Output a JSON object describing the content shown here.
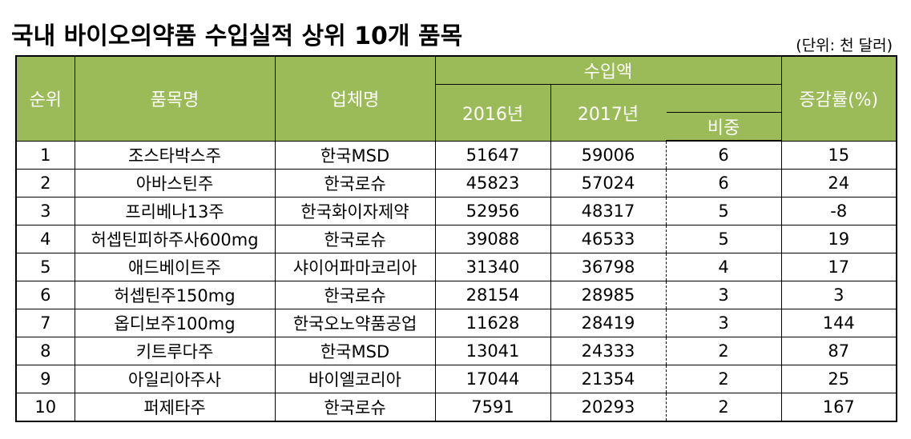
{
  "title": "국내 바이오의약품 수입실적 상위 10개 품목",
  "unit": "(단위: 천 달러)",
  "colors": {
    "header_bg": "#9bbb59",
    "header_text": "#ffffff"
  },
  "headers": {
    "rank": "순위",
    "item": "품목명",
    "company": "업체명",
    "import_amount": "수입액",
    "y2016": "2016년",
    "y2017": "2017년",
    "share": "비중",
    "change": "증감률(%)"
  },
  "rows": [
    {
      "rank": "1",
      "item": "조스타박스주",
      "company": "한국MSD",
      "y2016": "51647",
      "y2017": "59006",
      "share": "6",
      "change": "15"
    },
    {
      "rank": "2",
      "item": "아바스틴주",
      "company": "한국로슈",
      "y2016": "45823",
      "y2017": "57024",
      "share": "6",
      "change": "24"
    },
    {
      "rank": "3",
      "item": "프리베나13주",
      "company": "한국화이자제약",
      "y2016": "52956",
      "y2017": "48317",
      "share": "5",
      "change": "-8"
    },
    {
      "rank": "4",
      "item": "허셉틴피하주사600mg",
      "company": "한국로슈",
      "y2016": "39088",
      "y2017": "46533",
      "share": "5",
      "change": "19"
    },
    {
      "rank": "5",
      "item": "애드베이트주",
      "company": "샤이어파마코리아",
      "y2016": "31340",
      "y2017": "36798",
      "share": "4",
      "change": "17"
    },
    {
      "rank": "6",
      "item": "허셉틴주150mg",
      "company": "한국로슈",
      "y2016": "28154",
      "y2017": "28985",
      "share": "3",
      "change": "3"
    },
    {
      "rank": "7",
      "item": "옵디보주100mg",
      "company": "한국오노약품공업",
      "y2016": "11628",
      "y2017": "28419",
      "share": "3",
      "change": "144"
    },
    {
      "rank": "8",
      "item": "키트루다주",
      "company": "한국MSD",
      "y2016": "13041",
      "y2017": "24333",
      "share": "2",
      "change": "87"
    },
    {
      "rank": "9",
      "item": "아일리아주사",
      "company": "바이엘코리아",
      "y2016": "17044",
      "y2017": "21354",
      "share": "2",
      "change": "25"
    },
    {
      "rank": "10",
      "item": "퍼제타주",
      "company": "한국로슈",
      "y2016": "7591",
      "y2017": "20293",
      "share": "2",
      "change": "167"
    }
  ]
}
